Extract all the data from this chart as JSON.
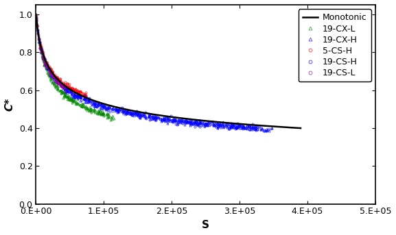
{
  "title": "",
  "xlabel": "S",
  "ylabel": "C*",
  "xlim": [
    0,
    500000
  ],
  "ylim": [
    0.0,
    1.05
  ],
  "xticks": [
    0,
    100000,
    200000,
    300000,
    400000,
    500000
  ],
  "yticks": [
    0.0,
    0.2,
    0.4,
    0.6,
    0.8,
    1.0
  ],
  "monotonic_color": "#000000",
  "background_color": "#ffffff",
  "legend_fontsize": 9,
  "axis_fontsize": 11,
  "series": [
    {
      "label": "19-CX-L",
      "color": "#008800",
      "marker": "^",
      "max_s": 125000,
      "b": 0.245,
      "s0": 5000,
      "shift": 0.0,
      "noise": 0.006,
      "n_reps": 4,
      "pts_per_rep": 60
    },
    {
      "label": "19-CX-H",
      "color": "#0000ff",
      "marker": "^",
      "max_s": 385000,
      "b": 0.22,
      "s0": 5000,
      "shift": 0.0,
      "noise": 0.006,
      "n_reps": 5,
      "pts_per_rep": 80
    },
    {
      "label": "5-CS-H",
      "color": "#ff0000",
      "marker": "o",
      "max_s": 80000,
      "b": 0.19,
      "s0": 4000,
      "shift": 0.0,
      "noise": 0.006,
      "n_reps": 3,
      "pts_per_rep": 50
    },
    {
      "label": "19-CS-H",
      "color": "#0000ff",
      "marker": "o",
      "max_s": 385000,
      "b": 0.22,
      "s0": 5000,
      "shift": 0.0,
      "noise": 0.006,
      "n_reps": 5,
      "pts_per_rep": 80
    },
    {
      "label": "19-CS-L",
      "color": "#990099",
      "marker": "o",
      "max_s": 45000,
      "b": 0.2,
      "s0": 4000,
      "shift": 0.0,
      "noise": 0.006,
      "n_reps": 3,
      "pts_per_rep": 35
    }
  ],
  "mono_b": 0.21,
  "mono_s0": 5000,
  "mono_max_s": 390000
}
